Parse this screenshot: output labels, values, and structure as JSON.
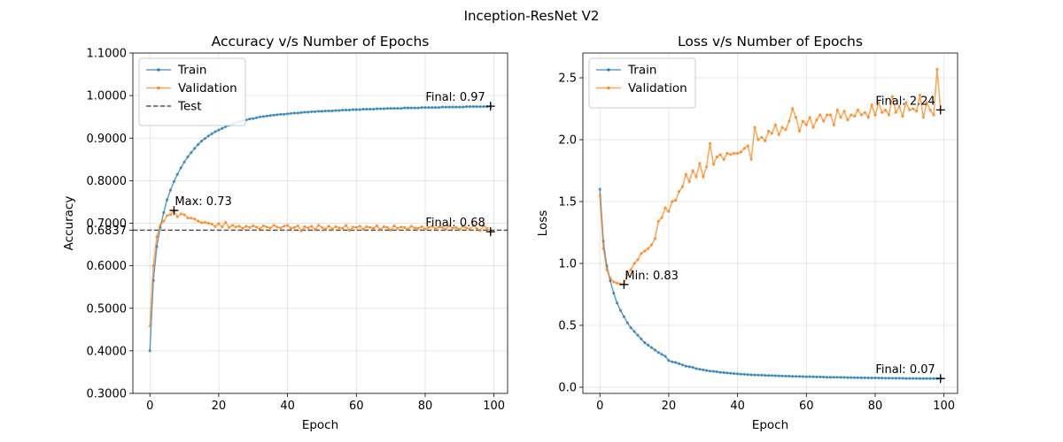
{
  "figure": {
    "suptitle": "Inception-ResNet V2"
  },
  "chart_data": [
    {
      "type": "line",
      "title": "Accuracy v/s Number of Epochs",
      "xlabel": "Epoch",
      "ylabel": "Accuracy",
      "xlim": [
        -4.95,
        103.95
      ],
      "ylim": [
        0.3,
        1.1
      ],
      "xticks": [
        0,
        20,
        40,
        60,
        80,
        100
      ],
      "xtick_labels": [
        "0",
        "20",
        "40",
        "60",
        "80",
        "100"
      ],
      "yticks": [
        0.3,
        0.4,
        0.5,
        0.6,
        0.7,
        0.8,
        0.9,
        1.0,
        1.1
      ],
      "ytick_labels": [
        "0.3000",
        "0.4000",
        "0.5000",
        "0.6000",
        "0.7000",
        "0.8000",
        "0.9000",
        "1.0000",
        "1.1000"
      ],
      "grid": true,
      "legend_position": "upper-left",
      "series": [
        {
          "name": "Train",
          "color": "#1f77b4",
          "values": [
            0.4,
            0.565,
            0.645,
            0.69,
            0.725,
            0.755,
            0.778,
            0.798,
            0.815,
            0.83,
            0.844,
            0.856,
            0.866,
            0.876,
            0.885,
            0.893,
            0.899,
            0.905,
            0.91,
            0.915,
            0.919,
            0.923,
            0.927,
            0.93,
            0.933,
            0.936,
            0.939,
            0.941,
            0.943,
            0.945,
            0.946,
            0.948,
            0.95,
            0.951,
            0.952,
            0.953,
            0.954,
            0.955,
            0.956,
            0.956,
            0.957,
            0.958,
            0.959,
            0.959,
            0.96,
            0.961,
            0.961,
            0.962,
            0.962,
            0.963,
            0.963,
            0.964,
            0.964,
            0.964,
            0.965,
            0.965,
            0.966,
            0.966,
            0.966,
            0.967,
            0.967,
            0.967,
            0.968,
            0.968,
            0.968,
            0.968,
            0.969,
            0.969,
            0.969,
            0.97,
            0.97,
            0.97,
            0.97,
            0.97,
            0.971,
            0.971,
            0.971,
            0.971,
            0.971,
            0.972,
            0.972,
            0.972,
            0.972,
            0.972,
            0.972,
            0.973,
            0.973,
            0.973,
            0.973,
            0.973,
            0.973,
            0.973,
            0.974,
            0.974,
            0.974,
            0.974,
            0.974,
            0.974,
            0.974,
            0.975
          ]
        },
        {
          "name": "Validation",
          "color": "#ff7f0e",
          "values": [
            0.458,
            0.6,
            0.668,
            0.695,
            0.705,
            0.718,
            0.72,
            0.73,
            0.715,
            0.722,
            0.72,
            0.712,
            0.712,
            0.71,
            0.705,
            0.701,
            0.702,
            0.7,
            0.698,
            0.692,
            0.699,
            0.691,
            0.702,
            0.69,
            0.695,
            0.691,
            0.693,
            0.688,
            0.693,
            0.69,
            0.694,
            0.691,
            0.687,
            0.694,
            0.691,
            0.689,
            0.695,
            0.691,
            0.689,
            0.693,
            0.695,
            0.688,
            0.69,
            0.694,
            0.682,
            0.692,
            0.689,
            0.693,
            0.685,
            0.695,
            0.69,
            0.686,
            0.693,
            0.686,
            0.692,
            0.689,
            0.688,
            0.695,
            0.683,
            0.691,
            0.69,
            0.693,
            0.686,
            0.692,
            0.69,
            0.688,
            0.694,
            0.685,
            0.692,
            0.69,
            0.684,
            0.694,
            0.688,
            0.691,
            0.69,
            0.686,
            0.693,
            0.689,
            0.688,
            0.692,
            0.686,
            0.69,
            0.693,
            0.687,
            0.691,
            0.69,
            0.686,
            0.694,
            0.688,
            0.69,
            0.685,
            0.693,
            0.689,
            0.686,
            0.695,
            0.688,
            0.683,
            0.694,
            0.688,
            0.68
          ]
        }
      ],
      "reference_lines": [
        {
          "name": "Test",
          "y": 0.6837,
          "label": "0.6837",
          "color": "#555555",
          "style": "dashed"
        }
      ],
      "annotations": [
        {
          "text": "Max: 0.73",
          "x": 7,
          "y": 0.73
        },
        {
          "text": "Final: 0.97",
          "x": 99,
          "y": 0.975
        },
        {
          "text": "Final: 0.68",
          "x": 99,
          "y": 0.68
        }
      ]
    },
    {
      "type": "line",
      "title": "Loss v/s Number of Epochs",
      "xlabel": "Epoch",
      "ylabel": "Loss",
      "xlim": [
        -4.95,
        103.95
      ],
      "ylim": [
        -0.05,
        2.7
      ],
      "xticks": [
        0,
        20,
        40,
        60,
        80,
        100
      ],
      "xtick_labels": [
        "0",
        "20",
        "40",
        "60",
        "80",
        "100"
      ],
      "yticks": [
        0.0,
        0.5,
        1.0,
        1.5,
        2.0,
        2.5
      ],
      "ytick_labels": [
        "0.0",
        "0.5",
        "1.0",
        "1.5",
        "2.0",
        "2.5"
      ],
      "grid": true,
      "legend_position": "upper-left",
      "series": [
        {
          "name": "Train",
          "color": "#1f77b4",
          "values": [
            1.6,
            1.18,
            0.98,
            0.86,
            0.76,
            0.68,
            0.62,
            0.57,
            0.52,
            0.48,
            0.45,
            0.42,
            0.39,
            0.36,
            0.34,
            0.32,
            0.3,
            0.28,
            0.265,
            0.25,
            0.215,
            0.205,
            0.2,
            0.19,
            0.18,
            0.17,
            0.165,
            0.16,
            0.15,
            0.145,
            0.14,
            0.135,
            0.13,
            0.128,
            0.125,
            0.12,
            0.118,
            0.115,
            0.113,
            0.11,
            0.108,
            0.106,
            0.104,
            0.102,
            0.1,
            0.099,
            0.098,
            0.097,
            0.096,
            0.095,
            0.094,
            0.093,
            0.092,
            0.091,
            0.09,
            0.089,
            0.088,
            0.087,
            0.087,
            0.086,
            0.085,
            0.085,
            0.084,
            0.083,
            0.083,
            0.082,
            0.081,
            0.081,
            0.08,
            0.08,
            0.079,
            0.079,
            0.078,
            0.078,
            0.077,
            0.077,
            0.076,
            0.076,
            0.075,
            0.075,
            0.075,
            0.074,
            0.074,
            0.073,
            0.073,
            0.073,
            0.072,
            0.072,
            0.072,
            0.071,
            0.071,
            0.071,
            0.071,
            0.07,
            0.07,
            0.07,
            0.07,
            0.07,
            0.07,
            0.07
          ]
        },
        {
          "name": "Validation",
          "color": "#ff7f0e",
          "values": [
            1.55,
            1.12,
            0.95,
            0.88,
            0.85,
            0.84,
            0.835,
            0.83,
            0.91,
            0.95,
            1.0,
            1.03,
            1.08,
            1.1,
            1.12,
            1.15,
            1.2,
            1.34,
            1.37,
            1.45,
            1.42,
            1.5,
            1.51,
            1.58,
            1.62,
            1.72,
            1.66,
            1.75,
            1.7,
            1.81,
            1.7,
            1.78,
            1.97,
            1.8,
            1.86,
            1.88,
            1.84,
            1.89,
            1.88,
            1.89,
            1.89,
            1.9,
            1.93,
            1.95,
            1.84,
            2.1,
            2.0,
            2.02,
            1.99,
            2.07,
            2.05,
            2.12,
            2.04,
            2.1,
            2.08,
            2.15,
            2.25,
            2.18,
            2.07,
            2.15,
            2.12,
            2.18,
            2.1,
            2.16,
            2.2,
            2.15,
            2.2,
            2.2,
            2.12,
            2.24,
            2.18,
            2.23,
            2.16,
            2.2,
            2.19,
            2.24,
            2.2,
            2.22,
            2.18,
            2.28,
            2.2,
            2.3,
            2.22,
            2.24,
            2.2,
            2.35,
            2.22,
            2.27,
            2.19,
            2.3,
            2.24,
            2.25,
            2.23,
            2.36,
            2.18,
            2.3,
            2.24,
            2.2,
            2.57,
            2.24
          ]
        }
      ],
      "reference_lines": [],
      "annotations": [
        {
          "text": "Min: 0.83",
          "x": 7,
          "y": 0.83
        },
        {
          "text": "Final: 2.24",
          "x": 99,
          "y": 2.24
        },
        {
          "text": "Final: 0.07",
          "x": 99,
          "y": 0.07
        }
      ]
    }
  ]
}
